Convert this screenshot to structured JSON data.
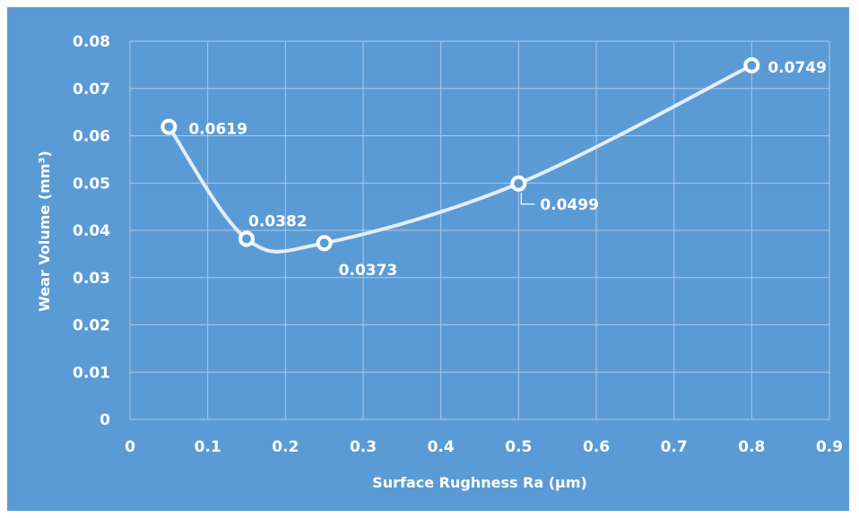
{
  "chart_data": {
    "type": "scatter",
    "style": "smooth-line-with-markers",
    "title": "",
    "xlabel": "Surface Rughness Ra (µm)",
    "ylabel": "Wear Volume (mm³)",
    "xlim": [
      0,
      0.9
    ],
    "ylim": [
      0,
      0.08
    ],
    "x_ticks": [
      "0",
      "0.1",
      "0.2",
      "0.3",
      "0.4",
      "0.5",
      "0.6",
      "0.7",
      "0.8",
      "0.9"
    ],
    "y_ticks": [
      "0",
      "0.01",
      "0.02",
      "0.03",
      "0.04",
      "0.05",
      "0.06",
      "0.07",
      "0.08"
    ],
    "grid": true,
    "legend": "none",
    "series": [
      {
        "x": [
          0.05,
          0.15,
          0.25,
          0.5,
          0.8
        ],
        "y": [
          0.0619,
          0.0382,
          0.0373,
          0.0499,
          0.0749
        ],
        "labels": [
          "0.0619",
          "0.0382",
          "0.0373",
          "0.0499",
          "0.0749"
        ]
      }
    ],
    "colors": {
      "background": "#5b9bd5",
      "gridline": "#a9c8e8",
      "line": "#e3eef9",
      "marker_stroke": "#ffffff",
      "text": "#ffffff"
    }
  }
}
